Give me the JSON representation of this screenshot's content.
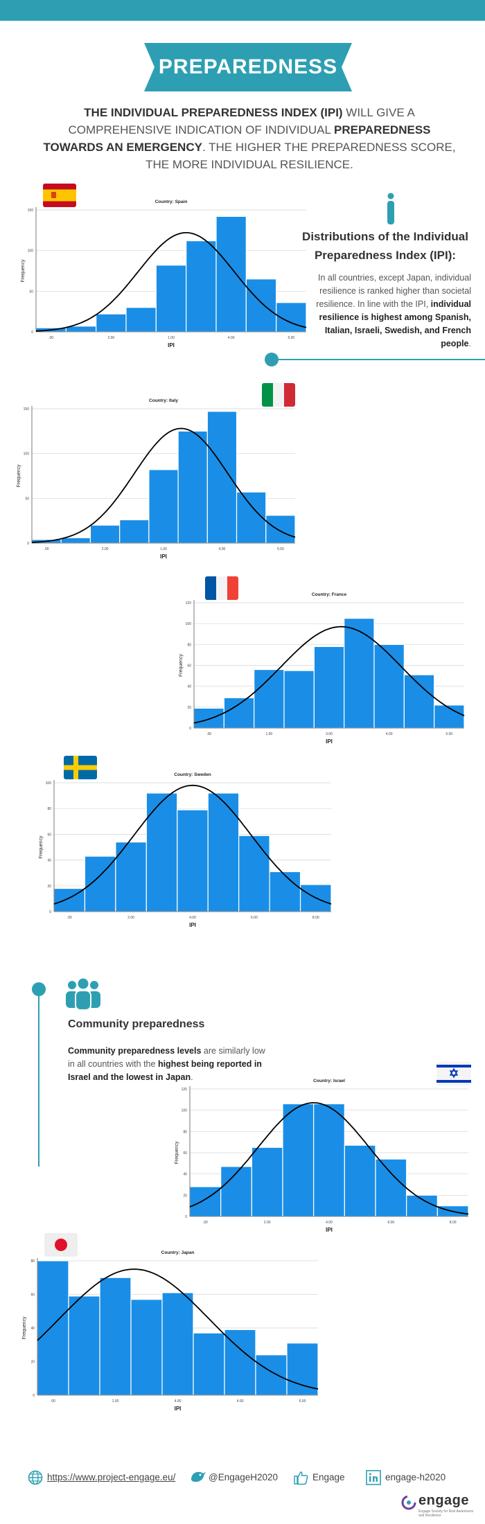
{
  "header": {
    "title": "PREPAREDNESS",
    "intro_b1": "THE INDIVIDUAL PREPAREDNESS INDEX (IPI)",
    "intro_t1": " WILL GIVE A COMPREHENSIVE INDICATION OF INDIVIDUAL ",
    "intro_b2": "PREPAREDNESS TOWARDS AN EMERGENCY",
    "intro_t2": ". THE HIGHER THE PREPAREDNESS SCORE, THE MORE INDIVIDUAL RESILIENCE."
  },
  "info": {
    "title": "Distributions of the Individual Preparedness Index (IPI):",
    "text": "In all countries, except Japan, individual resilience is ranked higher than societal resilience. In line with the IPI, ",
    "bold": "individual resilience is highest among Spanish, Italian, Israeli, Swedish, and French people",
    "end": "."
  },
  "community": {
    "title": "Community preparedness",
    "bold1": "Community preparedness levels",
    "text1": " are similarly low in all countries with the ",
    "bold2": "highest being reported in Israel and the lowest in Japan",
    "end": "."
  },
  "footer": {
    "website": "https://www.project-engage.eu/",
    "twitter": "@EngageH2020",
    "facebook": "Engage",
    "linkedin": "engage-h2020",
    "logo": "engage",
    "tagline": "Engage Society for Risk Awareness and Resilience"
  },
  "colors": {
    "accent": "#2e9fb3",
    "bar": "#1a8ee6",
    "curve": "#000000",
    "text": "#333333"
  },
  "chart_data": [
    {
      "type": "bar",
      "title": "Country: Spain",
      "xlabel": "IPI",
      "ylabel": "Frequency",
      "x_ticks": [
        ".00",
        "2.00",
        "1.00",
        "4.00",
        "5.00"
      ],
      "y_ticks": [
        0,
        50,
        100,
        150
      ],
      "ylim": [
        0,
        150
      ],
      "values": [
        5,
        7,
        22,
        30,
        82,
        112,
        142,
        65,
        36
      ],
      "curve_peak": 122,
      "curve_mean_bin": 5.0,
      "curve_sd_bins": 1.6
    },
    {
      "type": "bar",
      "title": "Country: Italy",
      "xlabel": "IPI",
      "ylabel": "Frequency",
      "x_ticks": [
        ".00",
        "2.00",
        "1.00",
        "4.00",
        "5.00"
      ],
      "y_ticks": [
        0,
        50,
        100,
        150
      ],
      "ylim": [
        0,
        150
      ],
      "values": [
        4,
        6,
        20,
        26,
        82,
        125,
        147,
        57,
        31
      ],
      "curve_peak": 128,
      "curve_mean_bin": 5.1,
      "curve_sd_bins": 1.6
    },
    {
      "type": "bar",
      "title": "Country: France",
      "xlabel": "IPI",
      "ylabel": "Frequency",
      "x_ticks": [
        ".00",
        "1.00",
        "3.00",
        "4.00",
        "5.00"
      ],
      "y_ticks": [
        0,
        20,
        40,
        60,
        80,
        100,
        120
      ],
      "ylim": [
        0,
        120
      ],
      "values": [
        19,
        29,
        56,
        55,
        78,
        105,
        80,
        51,
        22
      ],
      "curve_peak": 97,
      "curve_mean_bin": 4.9,
      "curve_sd_bins": 2.0
    },
    {
      "type": "bar",
      "title": "Country: Sweden",
      "xlabel": "IPI",
      "ylabel": "Frequency",
      "x_ticks": [
        ".00",
        "2.00",
        "4.00",
        "6.00",
        "8.00"
      ],
      "y_ticks": [
        0,
        20,
        40,
        60,
        80,
        100
      ],
      "ylim": [
        0,
        100
      ],
      "values": [
        18,
        43,
        54,
        92,
        79,
        92,
        59,
        31,
        21
      ],
      "curve_peak": 98,
      "curve_mean_bin": 4.5,
      "curve_sd_bins": 1.9
    },
    {
      "type": "bar",
      "title": "Country: Israel",
      "xlabel": "IPI",
      "ylabel": "Frequency",
      "x_ticks": [
        ".00",
        "2.00",
        "4.00",
        "6.00",
        "8.00"
      ],
      "y_ticks": [
        0,
        20,
        40,
        60,
        80,
        100,
        120
      ],
      "ylim": [
        0,
        120
      ],
      "values": [
        28,
        47,
        65,
        106,
        106,
        67,
        54,
        20,
        10
      ],
      "curve_peak": 107,
      "curve_mean_bin": 4.0,
      "curve_sd_bins": 1.8
    },
    {
      "type": "bar",
      "title": "Country: Japan",
      "xlabel": "IPI",
      "ylabel": "Frequency",
      "x_ticks": [
        ".00",
        "1.00",
        "4.00",
        "4.00",
        "6.00"
      ],
      "y_ticks": [
        0,
        20,
        40,
        60,
        80
      ],
      "ylim": [
        0,
        80
      ],
      "values": [
        80,
        59,
        70,
        57,
        61,
        37,
        39,
        24,
        31
      ],
      "curve_peak": 75,
      "curve_mean_bin": 3.1,
      "curve_sd_bins": 2.4
    }
  ]
}
